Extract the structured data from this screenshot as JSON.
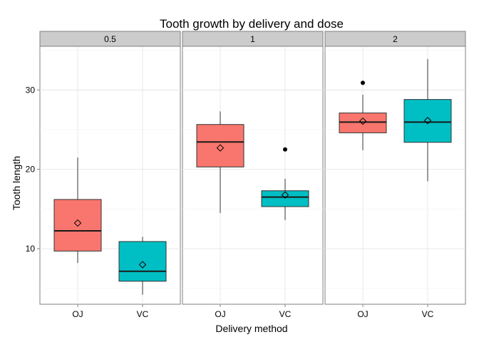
{
  "chart_data": {
    "type": "boxplot",
    "title": "Tooth growth by delivery and dose",
    "xlabel": "Delivery method",
    "ylabel": "Tooth length",
    "ylim": [
      3,
      35.5
    ],
    "yticks": [
      10,
      20,
      30
    ],
    "facets": [
      "0.5",
      "1",
      "2"
    ],
    "categories": [
      "OJ",
      "VC"
    ],
    "colors": {
      "OJ": "#f8766d",
      "VC": "#00bfc4"
    },
    "grid": true,
    "legend": "none",
    "boxes": [
      {
        "facet": "0.5",
        "category": "OJ",
        "min": 8.2,
        "q1": 9.7,
        "median": 12.25,
        "q3": 16.2,
        "max": 21.5,
        "mean": 13.23,
        "outliers": []
      },
      {
        "facet": "0.5",
        "category": "VC",
        "min": 4.2,
        "q1": 5.9,
        "median": 7.15,
        "q3": 10.9,
        "max": 11.5,
        "mean": 7.98,
        "outliers": []
      },
      {
        "facet": "1",
        "category": "OJ",
        "min": 14.5,
        "q1": 20.3,
        "median": 23.45,
        "q3": 25.65,
        "max": 27.3,
        "mean": 22.7,
        "outliers": []
      },
      {
        "facet": "1",
        "category": "VC",
        "min": 13.6,
        "q1": 15.3,
        "median": 16.5,
        "q3": 17.3,
        "max": 18.8,
        "mean": 16.77,
        "outliers": [
          22.5
        ]
      },
      {
        "facet": "2",
        "category": "OJ",
        "min": 22.4,
        "q1": 24.6,
        "median": 25.95,
        "q3": 27.1,
        "max": 29.4,
        "mean": 26.06,
        "outliers": [
          30.9
        ]
      },
      {
        "facet": "2",
        "category": "VC",
        "min": 18.5,
        "q1": 23.4,
        "median": 25.95,
        "q3": 28.8,
        "max": 33.9,
        "mean": 26.14,
        "outliers": []
      }
    ]
  }
}
